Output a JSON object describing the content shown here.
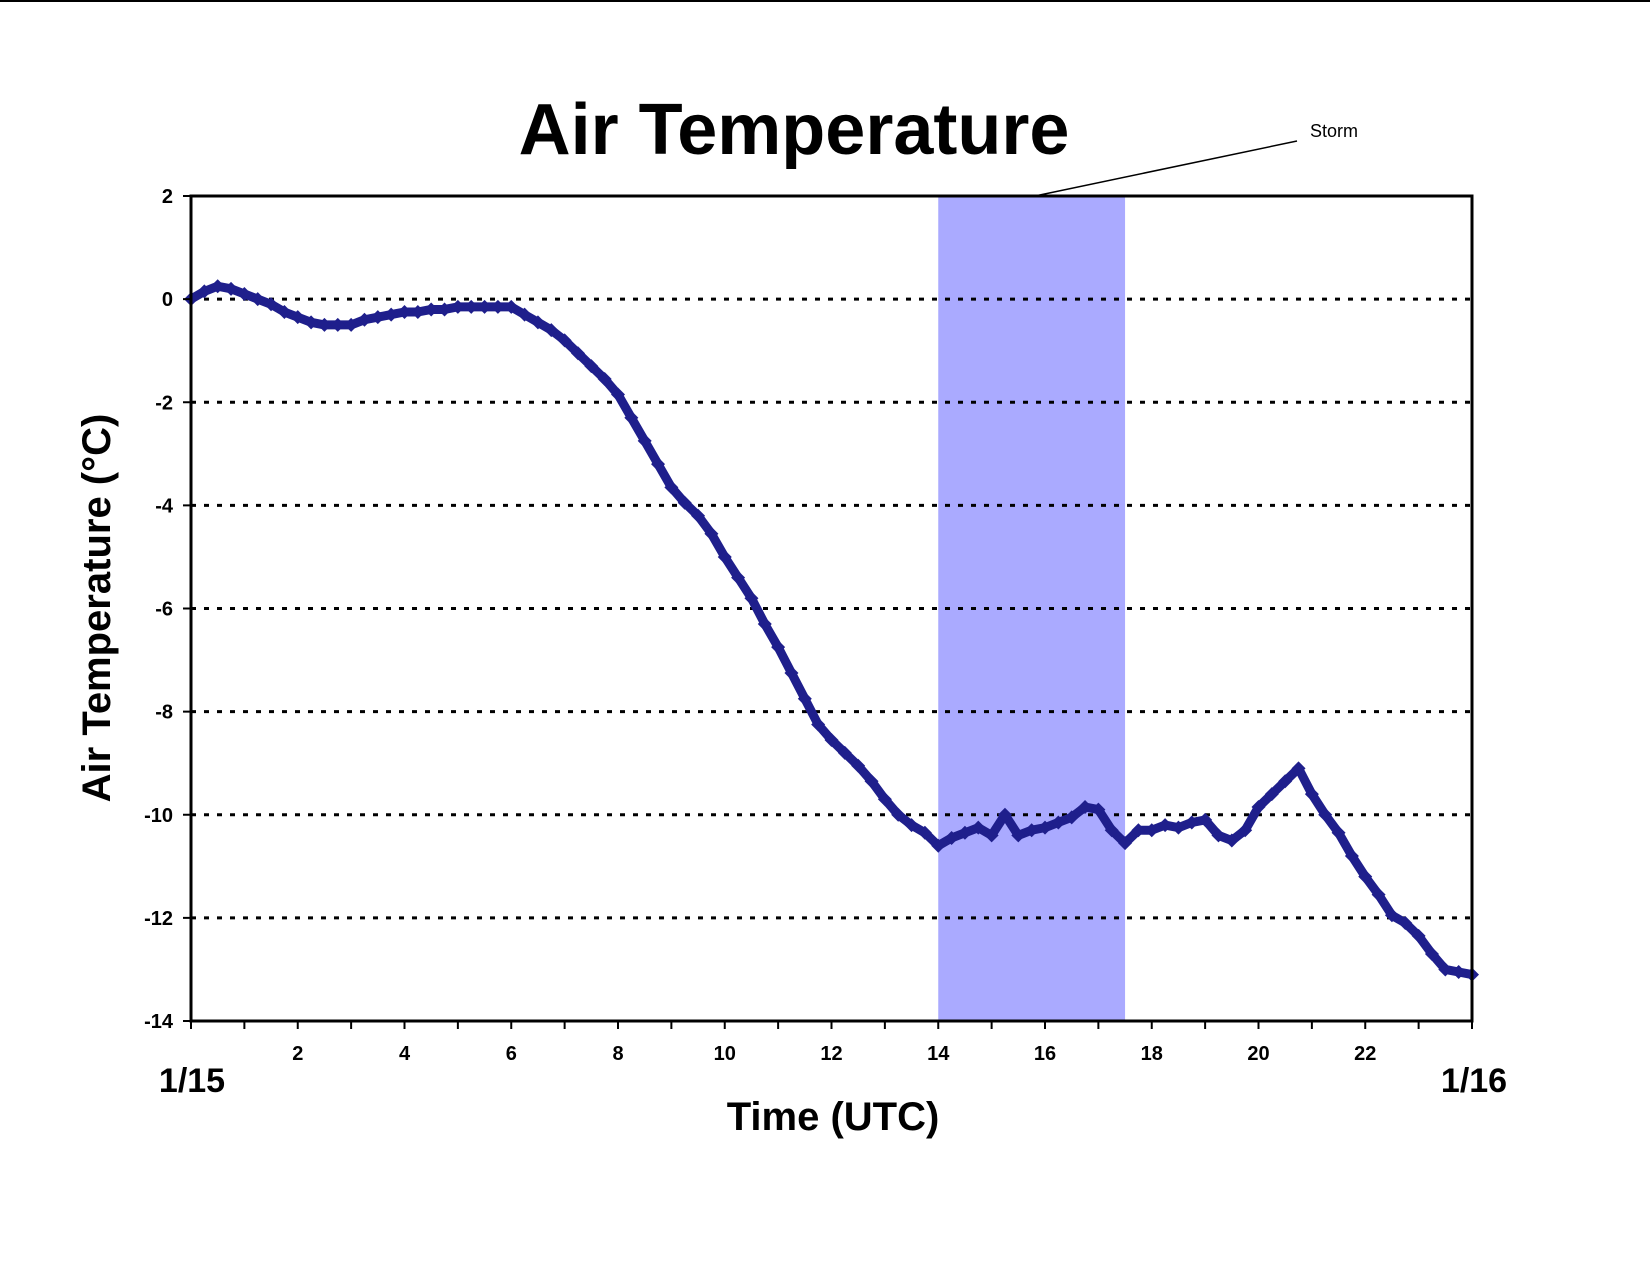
{
  "chart_data": {
    "type": "scatter",
    "title": "Air Temperature",
    "xlabel": "Time (UTC)",
    "ylabel": "Air Temperature (°C)",
    "xlim": [
      0,
      24
    ],
    "ylim": [
      -14,
      2
    ],
    "x_ticks": [
      2,
      4,
      6,
      8,
      10,
      12,
      14,
      16,
      18,
      20,
      22
    ],
    "y_ticks": [
      2,
      0,
      -2,
      -4,
      -6,
      -8,
      -10,
      -12,
      -14
    ],
    "x_tick_labels": [
      "2",
      "4",
      "6",
      "8",
      "10",
      "12",
      "14",
      "16",
      "18",
      "20",
      "22"
    ],
    "y_tick_labels": [
      "2",
      "0",
      "-2",
      "-4",
      "-6",
      "-8",
      "-10",
      "-12",
      "-14"
    ],
    "date_labels": {
      "start": "1/15",
      "end": "1/16"
    },
    "grid": "horizontal dashed",
    "series_color": "#1f1f8c",
    "shaded_region": {
      "x_start": 14,
      "x_end": 17.5,
      "color": "#aaaaff",
      "label": "Storm"
    },
    "series": [
      {
        "x": [
          0,
          0.25,
          0.5,
          0.75,
          1,
          1.25,
          1.5,
          1.75,
          2,
          2.25,
          2.5,
          2.75,
          3,
          3.25,
          3.5,
          3.75,
          4,
          4.25,
          4.5,
          4.75,
          5,
          5.25,
          5.5,
          5.75,
          6,
          6.25,
          6.5,
          6.75,
          7,
          7.25,
          7.5,
          7.75,
          8,
          8.25,
          8.5,
          8.75,
          9,
          9.25,
          9.5,
          9.75,
          10,
          10.25,
          10.5,
          10.75,
          11,
          11.25,
          11.5,
          11.75,
          12,
          12.25,
          12.5,
          12.75,
          13,
          13.25,
          13.5,
          13.75,
          14,
          14.25,
          14.5,
          14.75,
          15,
          15.25,
          15.5,
          15.75,
          16,
          16.25,
          16.5,
          16.75,
          17,
          17.25,
          17.5,
          17.75,
          18,
          18.25,
          18.5,
          18.75,
          19,
          19.25,
          19.5,
          19.75,
          20,
          20.25,
          20.5,
          20.75,
          21,
          21.25,
          21.5,
          21.75,
          22,
          22.25,
          22.5,
          22.75,
          23,
          23.25,
          23.5,
          23.75,
          24
        ],
        "y": [
          0,
          0.15,
          0.25,
          0.2,
          0.1,
          0.0,
          -0.1,
          -0.25,
          -0.35,
          -0.45,
          -0.5,
          -0.5,
          -0.5,
          -0.4,
          -0.35,
          -0.3,
          -0.25,
          -0.25,
          -0.2,
          -0.2,
          -0.15,
          -0.15,
          -0.15,
          -0.15,
          -0.15,
          -0.3,
          -0.45,
          -0.6,
          -0.8,
          -1.05,
          -1.3,
          -1.55,
          -1.85,
          -2.3,
          -2.75,
          -3.2,
          -3.65,
          -3.95,
          -4.2,
          -4.55,
          -5.0,
          -5.4,
          -5.8,
          -6.3,
          -6.75,
          -7.25,
          -7.75,
          -8.25,
          -8.55,
          -8.8,
          -9.05,
          -9.35,
          -9.7,
          -10.0,
          -10.2,
          -10.35,
          -10.6,
          -10.45,
          -10.35,
          -10.25,
          -10.4,
          -10.0,
          -10.4,
          -10.3,
          -10.25,
          -10.15,
          -10.05,
          -9.85,
          -9.9,
          -10.3,
          -10.55,
          -10.3,
          -10.3,
          -10.2,
          -10.25,
          -10.15,
          -10.1,
          -10.4,
          -10.5,
          -10.3,
          -9.85,
          -9.6,
          -9.35,
          -9.1,
          -9.6,
          -10.0,
          -10.35,
          -10.8,
          -11.2,
          -11.55,
          -11.95,
          -12.1,
          -12.35,
          -12.7,
          -13.0,
          -13.05,
          -13.1
        ]
      }
    ]
  }
}
